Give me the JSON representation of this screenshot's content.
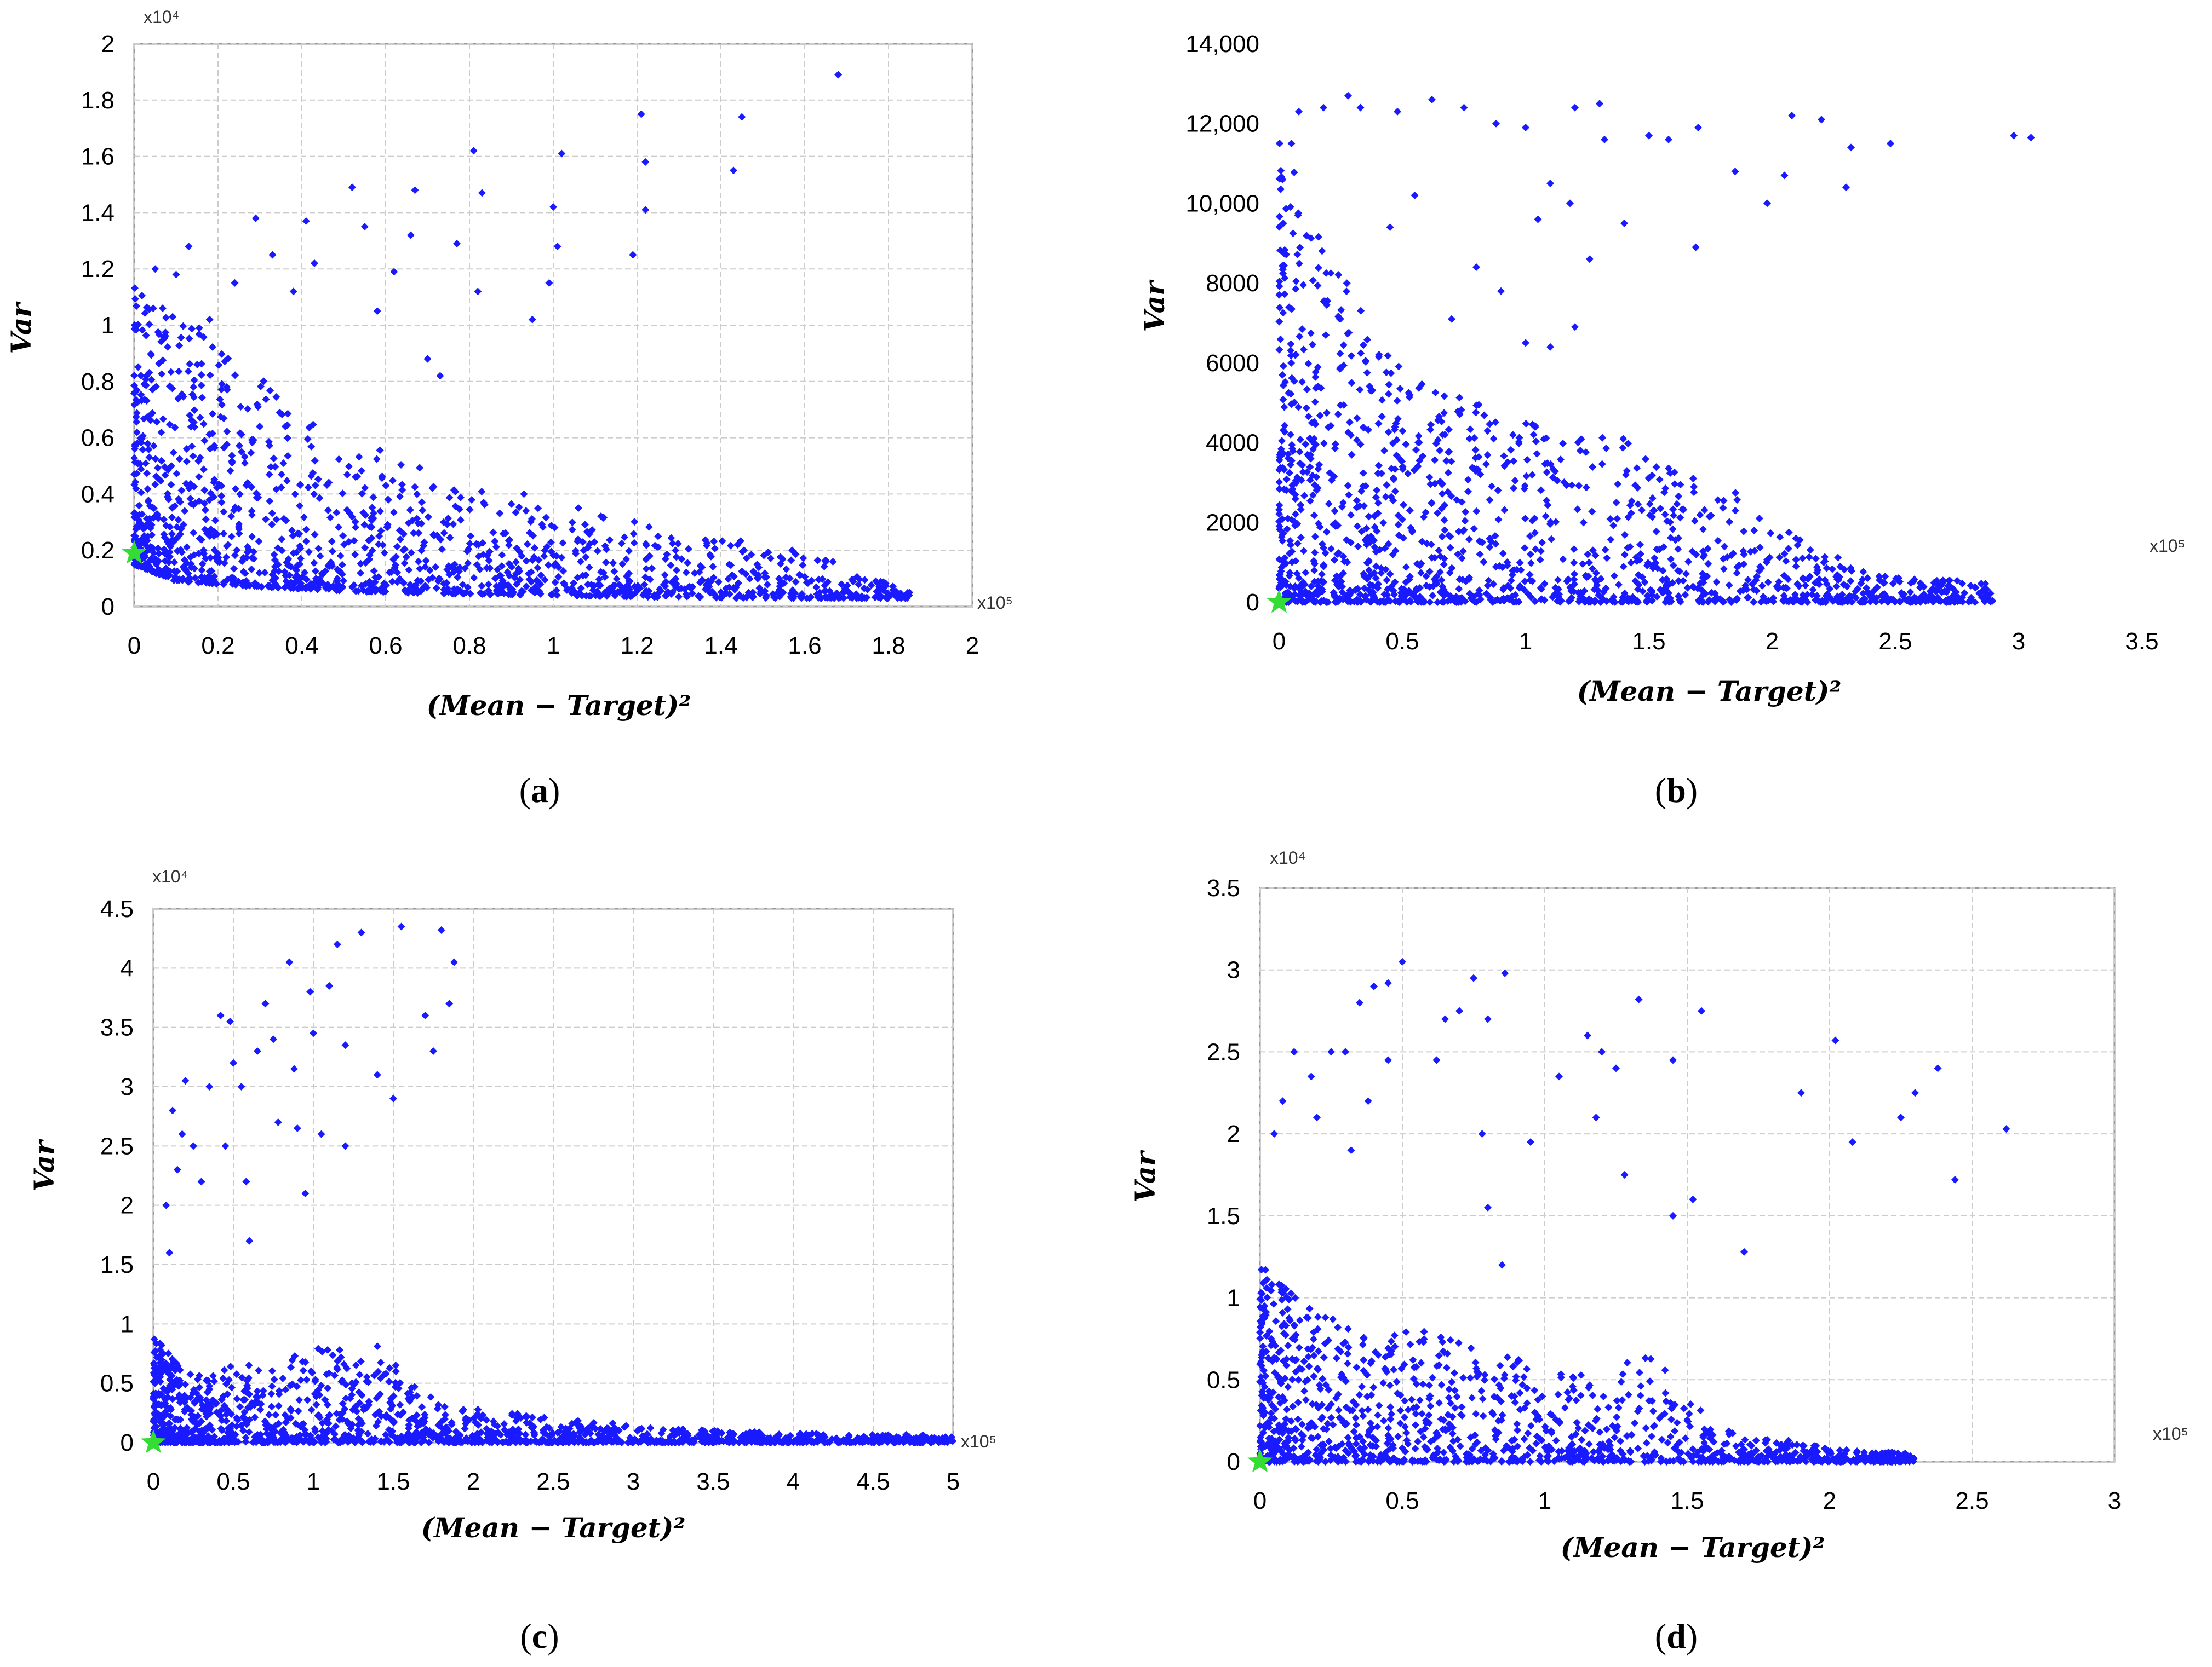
{
  "figure": {
    "point_color": "#1a1aff",
    "optimum_color": "#33dd33"
  },
  "chart_data": [
    {
      "panel": "(a)",
      "panel_letter": "a",
      "type": "scatter",
      "title": "",
      "xlabel": "(Mean − Target)²",
      "ylabel": "Var",
      "x_exponent_label": "x10⁵",
      "y_exponent_label": "x10⁴",
      "xlim": [
        0,
        2
      ],
      "ylim": [
        0,
        2
      ],
      "xticks": [
        0,
        0.2,
        0.4,
        0.6,
        0.8,
        1,
        1.2,
        1.4,
        1.6,
        1.8,
        2
      ],
      "yticks": [
        0,
        0.2,
        0.4,
        0.6,
        0.8,
        1,
        1.2,
        1.4,
        1.6,
        1.8,
        2
      ],
      "xtick_labels": [
        "0",
        "0.2",
        "0.4",
        "0.6",
        "0.8",
        "1",
        "1.2",
        "1.4",
        "1.6",
        "1.8",
        "2"
      ],
      "ytick_labels": [
        "0",
        "0.2",
        "0.4",
        "0.6",
        "0.8",
        "1",
        "1.2",
        "1.4",
        "1.6",
        "1.8",
        "2"
      ],
      "grid": true,
      "optimum_point": {
        "x": 0.0,
        "y": 0.19
      },
      "envelope": {
        "x": [
          0,
          0.1,
          0.2,
          0.4,
          0.6,
          0.8,
          1.0,
          1.2,
          1.4,
          1.6,
          1.85
        ],
        "y": [
          1.15,
          1.05,
          0.95,
          0.7,
          0.55,
          0.42,
          0.35,
          0.3,
          0.25,
          0.2,
          0.05
        ]
      },
      "floor": {
        "x": [
          0,
          0.1,
          0.3,
          0.6,
          1.0,
          1.4,
          1.85
        ],
        "y": [
          0.15,
          0.09,
          0.07,
          0.05,
          0.04,
          0.03,
          0.03
        ]
      },
      "x_max_dense": 1.85,
      "n_dense": 1500,
      "outliers": [
        [
          0.05,
          1.2
        ],
        [
          0.1,
          1.18
        ],
        [
          0.13,
          1.28
        ],
        [
          0.18,
          1.02
        ],
        [
          0.24,
          1.15
        ],
        [
          0.29,
          1.38
        ],
        [
          0.33,
          1.25
        ],
        [
          0.38,
          1.12
        ],
        [
          0.41,
          1.37
        ],
        [
          0.43,
          1.22
        ],
        [
          0.52,
          1.49
        ],
        [
          0.55,
          1.35
        ],
        [
          0.58,
          1.05
        ],
        [
          0.62,
          1.19
        ],
        [
          0.66,
          1.32
        ],
        [
          0.67,
          1.48
        ],
        [
          0.7,
          0.88
        ],
        [
          0.73,
          0.82
        ],
        [
          0.77,
          1.29
        ],
        [
          0.81,
          1.62
        ],
        [
          0.83,
          1.47
        ],
        [
          0.82,
          1.12
        ],
        [
          0.95,
          1.02
        ],
        [
          0.99,
          1.15
        ],
        [
          1.0,
          1.42
        ],
        [
          1.02,
          1.61
        ],
        [
          1.01,
          1.28
        ],
        [
          1.19,
          1.25
        ],
        [
          1.21,
          1.75
        ],
        [
          1.22,
          1.58
        ],
        [
          1.22,
          1.41
        ],
        [
          1.43,
          1.55
        ],
        [
          1.45,
          1.74
        ],
        [
          1.68,
          1.89
        ],
        [
          1.25,
          0.25
        ],
        [
          1.23,
          0.18
        ],
        [
          1.44,
          0.22
        ],
        [
          1.48,
          0.12
        ],
        [
          1.57,
          0.2
        ],
        [
          1.12,
          0.12
        ],
        [
          1.06,
          0.35
        ],
        [
          0.93,
          0.4
        ]
      ]
    },
    {
      "panel": "(b)",
      "panel_letter": "b",
      "type": "scatter",
      "title": "",
      "xlabel": "(Mean − Target)²",
      "ylabel": "Var",
      "x_exponent_label": "x10⁵",
      "y_exponent_label": "",
      "xlim": [
        0,
        3.5
      ],
      "ylim": [
        0,
        14000
      ],
      "xticks": [
        0,
        0.5,
        1,
        1.5,
        2,
        2.5,
        3,
        3.5
      ],
      "yticks": [
        0,
        2000,
        4000,
        6000,
        8000,
        10000,
        12000,
        14000
      ],
      "xtick_labels": [
        "0",
        "0.5",
        "1",
        "1.5",
        "2",
        "2.5",
        "3",
        "3.5"
      ],
      "ytick_labels": [
        "0",
        "2000",
        "4000",
        "6000",
        "8000",
        "10,000",
        "12,000",
        "14,000"
      ],
      "grid": false,
      "optimum_point": {
        "x": 0.0,
        "y": 0
      },
      "envelope": {
        "x": [
          0,
          0.2,
          0.4,
          0.6,
          0.8,
          1.0,
          1.2,
          1.4,
          1.6,
          1.8,
          2.0,
          2.4,
          2.9
        ],
        "y": [
          12000,
          9000,
          6500,
          5500,
          5000,
          4500,
          4500,
          4200,
          3500,
          3000,
          2000,
          700,
          500
        ]
      },
      "floor": {
        "x": [
          0,
          3
        ],
        "y": [
          0,
          0
        ]
      },
      "x_max_dense": 2.9,
      "n_dense": 1500,
      "outliers": [
        [
          0.05,
          11500
        ],
        [
          0.08,
          12300
        ],
        [
          0.18,
          12400
        ],
        [
          0.28,
          12700
        ],
        [
          0.33,
          12400
        ],
        [
          0.48,
          12300
        ],
        [
          0.62,
          12600
        ],
        [
          0.75,
          12400
        ],
        [
          0.88,
          12000
        ],
        [
          1.0,
          11900
        ],
        [
          1.2,
          12400
        ],
        [
          1.3,
          12500
        ],
        [
          1.32,
          11600
        ],
        [
          1.5,
          11700
        ],
        [
          1.58,
          11600
        ],
        [
          1.7,
          11900
        ],
        [
          2.08,
          12200
        ],
        [
          2.2,
          12100
        ],
        [
          2.32,
          11400
        ],
        [
          2.48,
          11500
        ],
        [
          2.98,
          11700
        ],
        [
          3.05,
          11650
        ],
        [
          1.1,
          10500
        ],
        [
          1.18,
          10000
        ],
        [
          1.05,
          9600
        ],
        [
          1.4,
          9500
        ],
        [
          1.26,
          8600
        ],
        [
          0.8,
          8400
        ],
        [
          0.9,
          7800
        ],
        [
          0.7,
          7100
        ],
        [
          1.0,
          6500
        ],
        [
          1.1,
          6400
        ],
        [
          1.2,
          6900
        ],
        [
          1.69,
          8900
        ],
        [
          1.98,
          10000
        ],
        [
          2.05,
          10700
        ],
        [
          2.3,
          10400
        ],
        [
          1.85,
          10800
        ],
        [
          0.45,
          9400
        ],
        [
          0.55,
          10200
        ]
      ]
    },
    {
      "panel": "(c)",
      "panel_letter": "c",
      "type": "scatter",
      "title": "",
      "xlabel": "(Mean − Target)²",
      "ylabel": "Var",
      "x_exponent_label": "x10⁵",
      "y_exponent_label": "x10⁴",
      "xlim": [
        0,
        5
      ],
      "ylim": [
        0,
        4.5
      ],
      "xticks": [
        0,
        0.5,
        1,
        1.5,
        2,
        2.5,
        3,
        3.5,
        4,
        4.5,
        5
      ],
      "yticks": [
        0,
        0.5,
        1,
        1.5,
        2,
        2.5,
        3,
        3.5,
        4,
        4.5
      ],
      "xtick_labels": [
        "0",
        "0.5",
        "1",
        "1.5",
        "2",
        "2.5",
        "3",
        "3.5",
        "4",
        "4.5",
        "5"
      ],
      "ytick_labels": [
        "0",
        "0.5",
        "1",
        "1.5",
        "2",
        "2.5",
        "3",
        "3.5",
        "4",
        "4.5"
      ],
      "grid": true,
      "optimum_point": {
        "x": 0.0,
        "y": 0.0
      },
      "envelope": {
        "x": [
          0,
          0.2,
          0.5,
          0.8,
          1.1,
          1.4,
          1.7,
          2.0,
          2.5,
          3.0,
          3.5,
          4.0,
          5.0
        ],
        "y": [
          0.9,
          0.6,
          0.65,
          0.7,
          0.85,
          0.85,
          0.4,
          0.3,
          0.2,
          0.15,
          0.1,
          0.08,
          0.06
        ]
      },
      "floor": {
        "x": [
          0,
          5
        ],
        "y": [
          0,
          0
        ]
      },
      "x_max_dense": 5.0,
      "n_dense": 1500,
      "outliers": [
        [
          0.12,
          2.8
        ],
        [
          0.2,
          3.05
        ],
        [
          0.18,
          2.6
        ],
        [
          0.25,
          2.5
        ],
        [
          0.3,
          2.2
        ],
        [
          0.35,
          3.0
        ],
        [
          0.42,
          3.6
        ],
        [
          0.48,
          3.55
        ],
        [
          0.5,
          3.2
        ],
        [
          0.55,
          3.0
        ],
        [
          0.58,
          2.2
        ],
        [
          0.6,
          1.7
        ],
        [
          0.65,
          3.3
        ],
        [
          0.7,
          3.7
        ],
        [
          0.75,
          3.4
        ],
        [
          0.78,
          2.7
        ],
        [
          0.85,
          4.05
        ],
        [
          0.88,
          3.15
        ],
        [
          0.95,
          2.1
        ],
        [
          0.98,
          3.8
        ],
        [
          1.05,
          2.6
        ],
        [
          1.1,
          3.85
        ],
        [
          1.15,
          4.2
        ],
        [
          1.2,
          2.5
        ],
        [
          1.3,
          4.3
        ],
        [
          1.4,
          3.1
        ],
        [
          1.5,
          2.9
        ],
        [
          1.55,
          4.35
        ],
        [
          1.7,
          3.6
        ],
        [
          1.75,
          3.3
        ],
        [
          1.8,
          4.32
        ],
        [
          1.88,
          4.05
        ],
        [
          1.85,
          3.7
        ],
        [
          1.2,
          3.35
        ],
        [
          1.0,
          3.45
        ],
        [
          0.9,
          2.65
        ],
        [
          0.45,
          2.5
        ],
        [
          0.15,
          2.3
        ],
        [
          0.08,
          2.0
        ],
        [
          0.1,
          1.6
        ]
      ]
    },
    {
      "panel": "(d)",
      "panel_letter": "d",
      "type": "scatter",
      "title": "",
      "xlabel": "(Mean − Target)²",
      "ylabel": "Var",
      "x_exponent_label": "x10⁵",
      "y_exponent_label": "x10⁴",
      "xlim": [
        0,
        3
      ],
      "ylim": [
        0,
        3.5
      ],
      "xticks": [
        0,
        0.5,
        1,
        1.5,
        2,
        2.5,
        3
      ],
      "yticks": [
        0,
        0.5,
        1,
        1.5,
        2,
        2.5,
        3,
        3.5
      ],
      "xtick_labels": [
        "0",
        "0.5",
        "1",
        "1.5",
        "2",
        "2.5",
        "3"
      ],
      "ytick_labels": [
        "0",
        "0.5",
        "1",
        "1.5",
        "2",
        "2.5",
        "3",
        "3.5"
      ],
      "grid": true,
      "optimum_point": {
        "x": 0.0,
        "y": 0.0
      },
      "envelope": {
        "x": [
          0,
          0.2,
          0.4,
          0.6,
          0.8,
          1.0,
          1.2,
          1.4,
          1.6,
          1.8,
          2.0,
          2.3
        ],
        "y": [
          1.2,
          0.9,
          0.8,
          0.8,
          0.7,
          0.6,
          0.6,
          0.65,
          0.2,
          0.15,
          0.08,
          0.05
        ]
      },
      "floor": {
        "x": [
          0,
          2.3
        ],
        "y": [
          0,
          0
        ]
      },
      "x_max_dense": 2.3,
      "n_dense": 1300,
      "outliers": [
        [
          0.05,
          2.0
        ],
        [
          0.08,
          2.2
        ],
        [
          0.12,
          2.5
        ],
        [
          0.18,
          2.35
        ],
        [
          0.2,
          2.1
        ],
        [
          0.25,
          2.5
        ],
        [
          0.3,
          2.5
        ],
        [
          0.35,
          2.8
        ],
        [
          0.4,
          2.9
        ],
        [
          0.45,
          2.92
        ],
        [
          0.5,
          3.05
        ],
        [
          0.45,
          2.45
        ],
        [
          0.38,
          2.2
        ],
        [
          0.32,
          1.9
        ],
        [
          0.65,
          2.7
        ],
        [
          0.7,
          2.75
        ],
        [
          0.75,
          2.95
        ],
        [
          0.8,
          2.7
        ],
        [
          0.86,
          2.98
        ],
        [
          0.62,
          2.45
        ],
        [
          0.78,
          2.0
        ],
        [
          0.8,
          1.55
        ],
        [
          0.85,
          1.2
        ],
        [
          0.95,
          1.95
        ],
        [
          1.05,
          2.35
        ],
        [
          1.15,
          2.6
        ],
        [
          1.2,
          2.5
        ],
        [
          1.25,
          2.4
        ],
        [
          1.33,
          2.82
        ],
        [
          1.45,
          2.45
        ],
        [
          1.55,
          2.75
        ],
        [
          1.18,
          2.1
        ],
        [
          1.28,
          1.75
        ],
        [
          1.45,
          1.5
        ],
        [
          1.52,
          1.6
        ],
        [
          1.7,
          1.28
        ],
        [
          1.9,
          2.25
        ],
        [
          2.02,
          2.57
        ],
        [
          2.08,
          1.95
        ],
        [
          2.25,
          2.1
        ],
        [
          2.3,
          2.25
        ],
        [
          2.38,
          2.4
        ],
        [
          2.44,
          1.72
        ],
        [
          2.62,
          2.03
        ]
      ]
    }
  ]
}
